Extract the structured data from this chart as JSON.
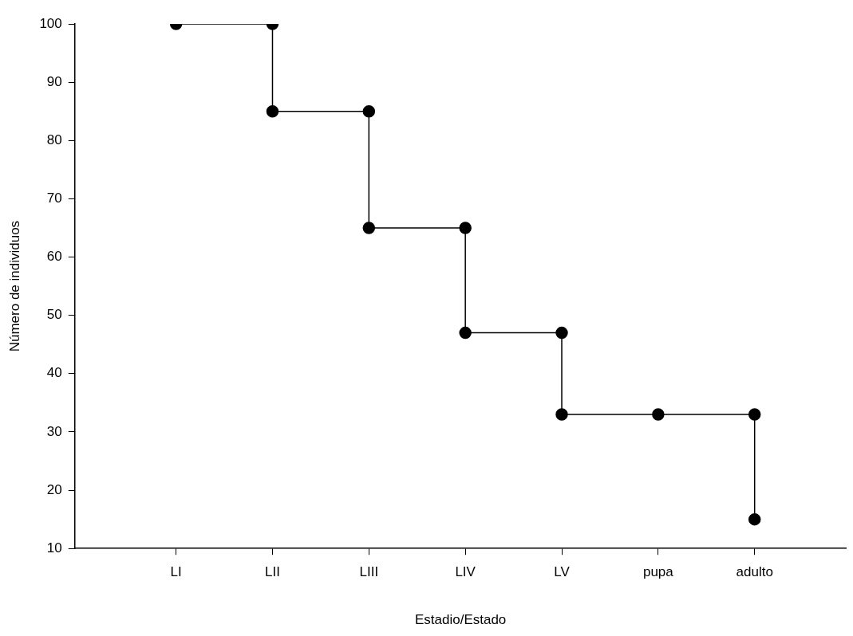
{
  "chart_data": {
    "type": "step",
    "xlabel": "Estadio/Estado",
    "ylabel": "Número de individuos",
    "categories": [
      "LI",
      "LII",
      "LIII",
      "LIV",
      "LV",
      "pupa",
      "adulto"
    ],
    "series": [
      {
        "color": "#000000",
        "values": [
          100,
          85,
          65,
          47,
          33,
          33,
          15
        ]
      },
      {
        "type": "scatter",
        "color": "#000000",
        "x": [
          "LII",
          "LIII",
          "LIV",
          "LV",
          "adulto"
        ],
        "values": [
          100,
          85,
          65,
          47,
          33
        ]
      }
    ],
    "marker": "circle",
    "line_style": "solid",
    "ylim": [
      10,
      100
    ],
    "yticks": [
      10,
      20,
      30,
      40,
      50,
      60,
      70,
      80,
      90,
      100
    ],
    "grid": false,
    "legend": false
  }
}
